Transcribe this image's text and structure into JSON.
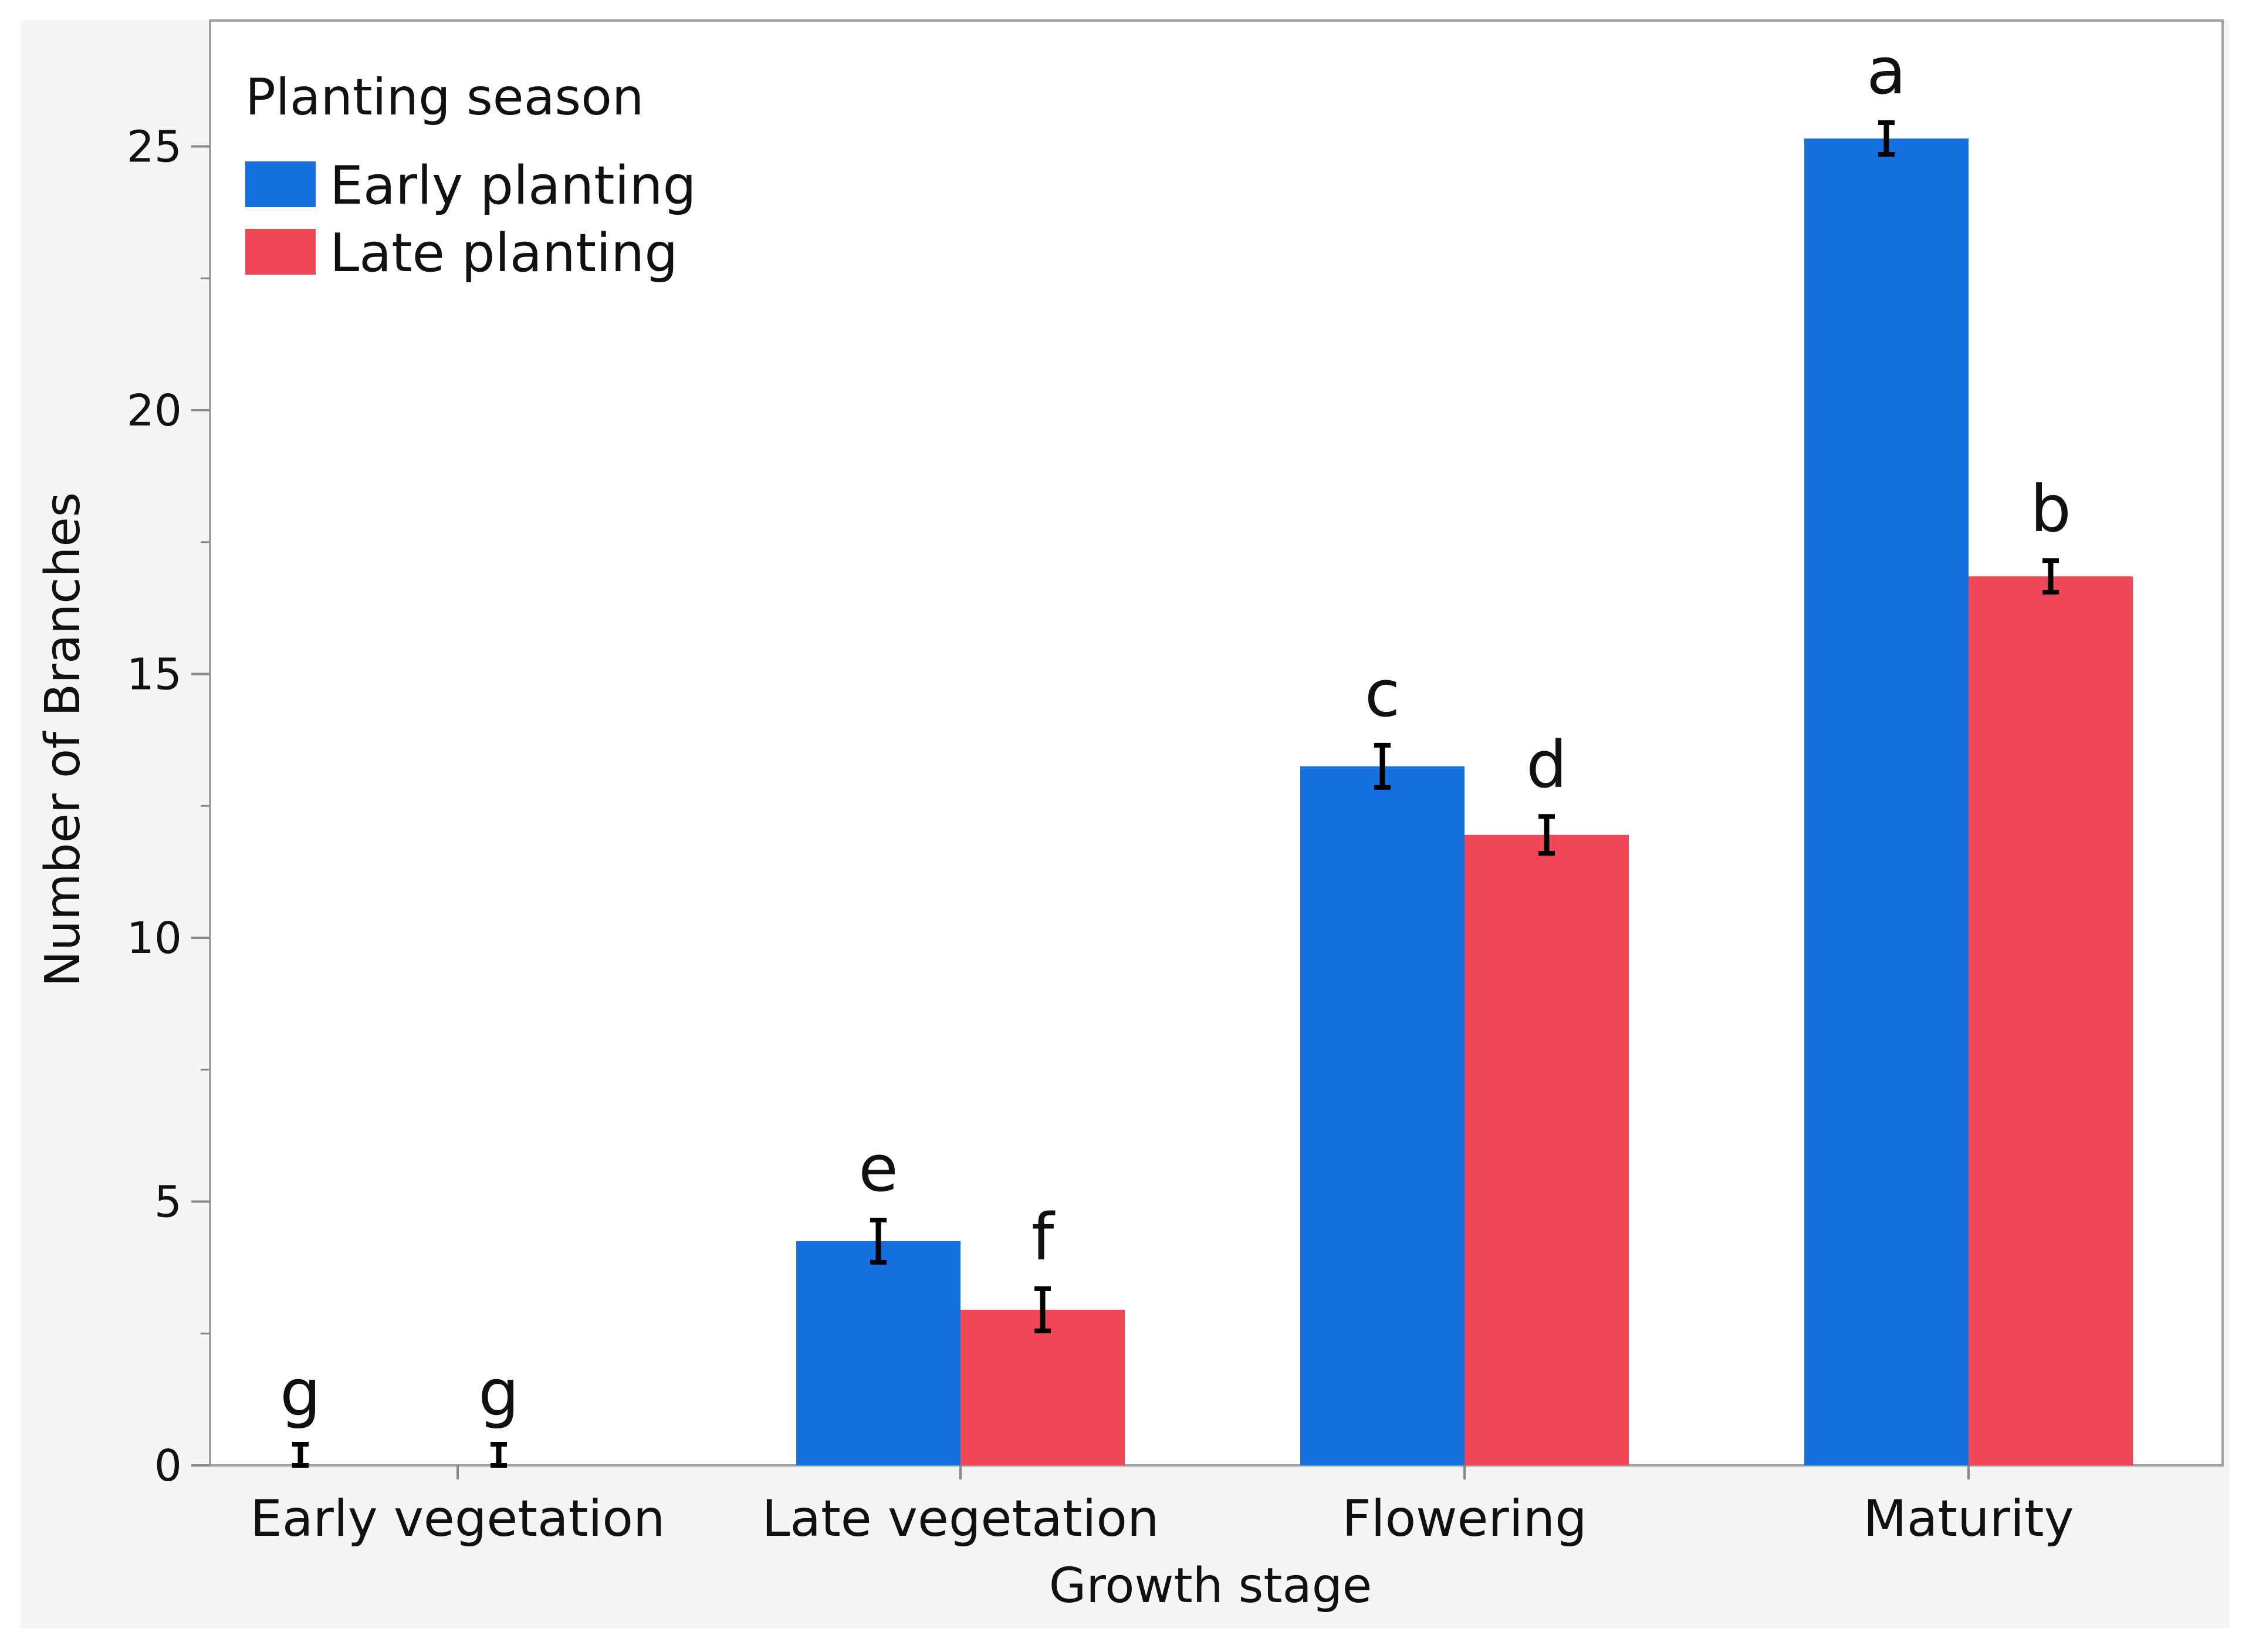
{
  "chart_data": {
    "type": "bar",
    "title": "",
    "xlabel": "Growth stage",
    "ylabel": "Number of Branches",
    "ylim": [
      0,
      27.5
    ],
    "yticks": [
      0,
      5,
      10,
      15,
      20,
      25
    ],
    "yticks_minor": [
      2.5,
      7.5,
      12.5,
      17.5,
      22.5
    ],
    "categories": [
      "Early vegetation",
      "Late vegetation",
      "Flowering",
      "Maturity"
    ],
    "legend": {
      "title": "Planting season",
      "position": "top-left"
    },
    "series": [
      {
        "name": "Early planting",
        "color": "#1570e0",
        "values": [
          0,
          4.25,
          13.25,
          25.15
        ],
        "errors": [
          0.4,
          0.4,
          0.4,
          0.3
        ],
        "letters": [
          "g",
          "e",
          "c",
          "a"
        ]
      },
      {
        "name": "Late planting",
        "color": "#f04757",
        "values": [
          0,
          2.95,
          11.95,
          16.85
        ],
        "errors": [
          0.4,
          0.4,
          0.35,
          0.3
        ],
        "letters": [
          "g",
          "f",
          "d",
          "b"
        ]
      }
    ]
  }
}
